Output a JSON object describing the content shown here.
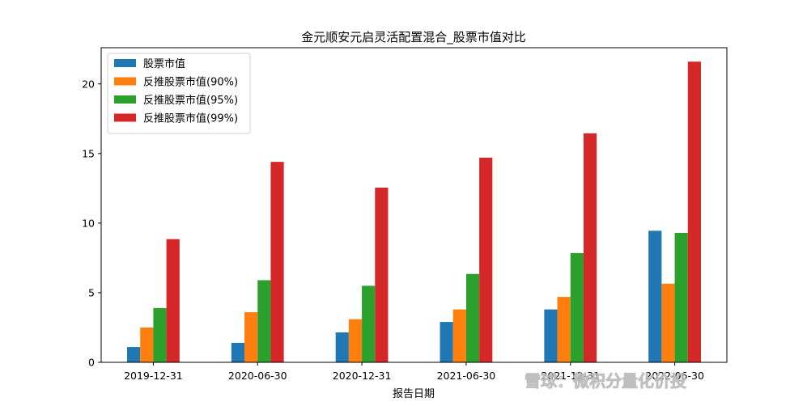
{
  "chart_data": {
    "type": "bar",
    "title": "金元顺安元启灵活配置混合_股票市值对比",
    "xlabel": "报告日期",
    "ylabel": "",
    "categories": [
      "2019-12-31",
      "2020-06-30",
      "2020-12-31",
      "2021-06-30",
      "2021-12-31",
      "2022-06-30"
    ],
    "series": [
      {
        "name": "股票市值",
        "color": "#1f77b4",
        "values": [
          1.1,
          1.4,
          2.15,
          2.9,
          3.8,
          9.45
        ]
      },
      {
        "name": "反推股票市值(90%)",
        "color": "#ff7f0e",
        "values": [
          2.5,
          3.6,
          3.1,
          3.8,
          4.7,
          5.65
        ]
      },
      {
        "name": "反推股票市值(95%)",
        "color": "#2ca02c",
        "values": [
          3.9,
          5.9,
          5.5,
          6.35,
          7.85,
          9.3
        ]
      },
      {
        "name": "反推股票市值(99%)",
        "color": "#d62728",
        "values": [
          8.85,
          14.4,
          12.55,
          14.7,
          16.45,
          21.6
        ]
      }
    ],
    "yticks": [
      0,
      5,
      10,
      15,
      20
    ],
    "ylim": [
      0,
      22.6
    ],
    "grid": false,
    "legend": "top-left"
  },
  "watermark": "雪球：微积分量化价投"
}
